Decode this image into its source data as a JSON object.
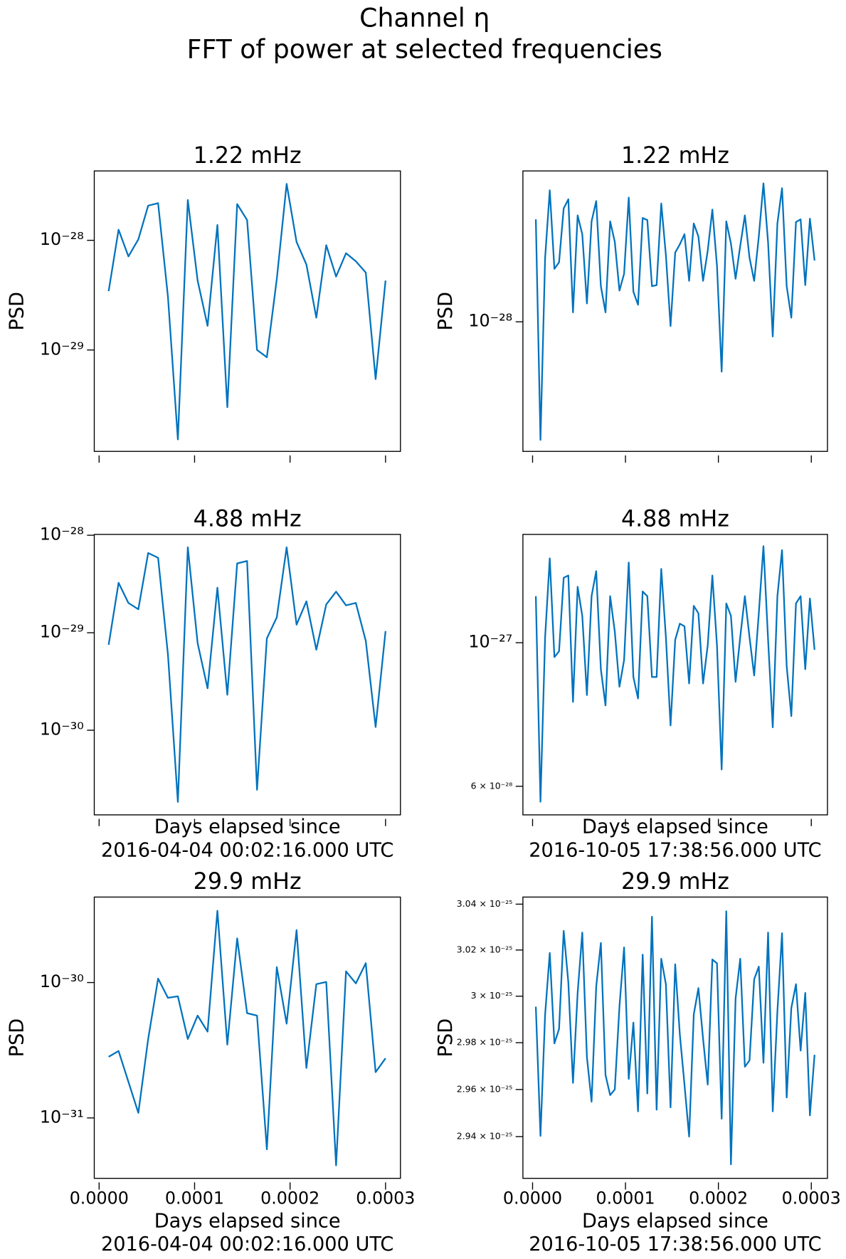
{
  "title": "Channel η",
  "subtitle": "FFT of power at selected frequencies",
  "chart_data": [
    {
      "type": "line",
      "title": "1.22 mHz",
      "ylabel": "PSD",
      "log_y": true,
      "xtick_labels": false,
      "x": [
        1e-05,
        2.04e-05,
        3.07e-05,
        4.11e-05,
        5.14e-05,
        6.18e-05,
        7.21e-05,
        8.25e-05,
        9.29e-05,
        0.0001032,
        0.0001136,
        0.0001239,
        0.0001343,
        0.0001446,
        0.000155,
        0.0001654,
        0.0001757,
        0.0001861,
        0.0001964,
        0.0002068,
        0.0002171,
        0.0002275,
        0.0002379,
        0.0002482,
        0.0002586,
        0.0002689,
        0.0002793,
        0.0002896,
        0.0003
      ],
      "series": [
        {
          "color": "#0072bd",
          "values": [
            3.44e-29,
            1.25e-28,
            7.13e-29,
            1.02e-28,
            2.07e-28,
            2.18e-28,
            3.06e-29,
            1.53e-30,
            2.33e-28,
            4.29e-29,
            1.66e-29,
            1.38e-28,
            3.01e-30,
            2.14e-28,
            1.53e-28,
            1e-29,
            8.59e-30,
            4.44e-29,
            3.27e-28,
            9.67e-29,
            6.02e-29,
            1.97e-29,
            9.03e-29,
            4.67e-29,
            7.63e-29,
            6.44e-29,
            5.08e-29,
            5.43e-30,
            4.29e-29
          ]
        }
      ],
      "xlim": [
        -5.06e-06,
        0.0003156
      ],
      "xticks": [
        0,
        0.0001,
        0.0002,
        0.0003
      ],
      "ylim": [
        1.19e-30,
        4.29e-28
      ],
      "yticks": [
        {
          "value": 1e-28,
          "label": "10⁻²⁸"
        },
        {
          "value": 1e-29,
          "label": "10⁻²⁹"
        }
      ]
    },
    {
      "type": "line",
      "title": "1.22 mHz",
      "ylabel": "PSD",
      "log_y": true,
      "xtick_labels": false,
      "x": [
        3.5e-06,
        8.5e-06,
        1.35e-05,
        1.85e-05,
        2.35e-05,
        2.85e-05,
        3.35e-05,
        3.85e-05,
        4.35e-05,
        4.85e-05,
        5.35e-05,
        5.85e-05,
        6.35e-05,
        6.85e-05,
        7.35e-05,
        7.85e-05,
        8.35e-05,
        8.85e-05,
        9.35e-05,
        9.85e-05,
        0.0001035,
        0.0001085,
        0.0001135,
        0.0001185,
        0.0001235,
        0.0001285,
        0.0001335,
        0.0001385,
        0.0001435,
        0.0001485,
        0.0001535,
        0.0001585,
        0.0001635,
        0.0001685,
        0.0001735,
        0.0001785,
        0.0001835,
        0.0001885,
        0.0001935,
        0.0001985,
        0.0002035,
        0.0002085,
        0.0002135,
        0.0002185,
        0.0002235,
        0.0002285,
        0.0002335,
        0.0002385,
        0.0002435,
        0.0002485,
        0.0002535,
        0.0002585,
        0.0002635,
        0.0002685,
        0.0002735,
        0.0002785,
        0.0002835,
        0.0002885,
        0.0002935,
        0.0002985,
        0.0003035
      ],
      "series": [
        {
          "color": "#0072bd",
          "values": [
            2.08e-28,
            4.3e-29,
            1.58e-28,
            2.56e-28,
            1.46e-28,
            1.53e-28,
            2.25e-28,
            2.4e-28,
            1.07e-28,
            2.14e-28,
            1.87e-28,
            1.14e-28,
            2.05e-28,
            2.37e-28,
            1.29e-28,
            1.07e-28,
            2.05e-28,
            1.77e-28,
            1.25e-28,
            1.41e-28,
            2.43e-28,
            1.24e-28,
            1.13e-28,
            2.1e-28,
            2.07e-28,
            1.29e-28,
            1.3e-28,
            2.33e-28,
            1.61e-28,
            9.7e-29,
            1.64e-28,
            1.74e-28,
            1.87e-28,
            1.34e-28,
            2.02e-28,
            1.84e-28,
            1.34e-28,
            1.66e-28,
            2.23e-28,
            1.49e-28,
            7e-29,
            2.05e-28,
            1.75e-28,
            1.36e-28,
            1.72e-28,
            2.14e-28,
            1.58e-28,
            1.34e-28,
            1.84e-28,
            2.69e-28,
            1.76e-28,
            9e-29,
            2.02e-28,
            2.6e-28,
            1.29e-28,
            1.03e-28,
            2.04e-28,
            2.08e-28,
            1.3e-28,
            2.09e-28,
            1.55e-28
          ]
        }
      ],
      "xlim": [
        -1.04e-05,
        0.0003174
      ],
      "xticks": [
        0,
        0.0001,
        0.0002,
        0.0003
      ],
      "ylim": [
        3.96e-29,
        2.94e-28
      ],
      "yticks": [
        {
          "value": 1e-28,
          "label": "10⁻²⁸"
        }
      ]
    },
    {
      "type": "line",
      "title": "4.88 mHz",
      "log_y": true,
      "xtick_labels": false,
      "xlabel": [
        "Days elapsed since",
        "2016-04-04 00:02:16.000 UTC"
      ],
      "x": [
        1e-05,
        2.04e-05,
        3.07e-05,
        4.11e-05,
        5.14e-05,
        6.18e-05,
        7.21e-05,
        8.25e-05,
        9.29e-05,
        0.0001032,
        0.0001136,
        0.0001239,
        0.0001343,
        0.0001446,
        0.000155,
        0.0001654,
        0.0001757,
        0.0001861,
        0.0001964,
        0.0002068,
        0.0002171,
        0.0002275,
        0.0002379,
        0.0002482,
        0.0002586,
        0.0002689,
        0.0002793,
        0.0002896,
        0.0003
      ],
      "series": [
        {
          "color": "#0072bd",
          "values": [
            7.52e-30,
            3.25e-29,
            2.02e-29,
            1.74e-29,
            6.58e-29,
            5.87e-29,
            5.98e-30,
            1.84e-31,
            7.52e-29,
            7.81e-30,
            2.69e-30,
            2.9e-29,
            2.31e-30,
            5.14e-29,
            5.44e-29,
            2.45e-31,
            8.75e-30,
            1.44e-29,
            7.52e-29,
            1.21e-29,
            2.1e-29,
            6.7e-30,
            1.95e-29,
            2.64e-29,
            1.91e-29,
            2.02e-29,
            8.26e-30,
            1.08e-30,
            1.04e-29
          ]
        }
      ],
      "xlim": [
        -5.06e-06,
        0.0003156
      ],
      "xticks": [
        0,
        0.0001,
        0.0002,
        0.0003
      ],
      "ylim": [
        1.355e-31,
        1.02e-28
      ],
      "yticks": [
        {
          "value": 1e-28,
          "label": "10⁻²⁸"
        },
        {
          "value": 1e-29,
          "label": "10⁻²⁹"
        },
        {
          "value": 1e-30,
          "label": "10⁻³⁰"
        }
      ]
    },
    {
      "type": "line",
      "title": "4.88 mHz",
      "log_y": true,
      "xtick_labels": false,
      "xlabel": [
        "Days elapsed since",
        "2016-10-05 17:38:56.000 UTC"
      ],
      "x": [
        3.5e-06,
        8.5e-06,
        1.35e-05,
        1.85e-05,
        2.35e-05,
        2.85e-05,
        3.35e-05,
        3.85e-05,
        4.35e-05,
        4.85e-05,
        5.35e-05,
        5.85e-05,
        6.35e-05,
        6.85e-05,
        7.35e-05,
        7.85e-05,
        8.35e-05,
        8.85e-05,
        9.35e-05,
        9.85e-05,
        0.0001035,
        0.0001085,
        0.0001135,
        0.0001185,
        0.0001235,
        0.0001285,
        0.0001335,
        0.0001385,
        0.0001435,
        0.0001485,
        0.0001535,
        0.0001585,
        0.0001635,
        0.0001685,
        0.0001735,
        0.0001785,
        0.0001835,
        0.0001885,
        0.0001935,
        0.0001985,
        0.0002035,
        0.0002085,
        0.0002135,
        0.0002185,
        0.0002235,
        0.0002285,
        0.0002335,
        0.0002385,
        0.0002435,
        0.0002485,
        0.0002535,
        0.0002585,
        0.0002635,
        0.0002685,
        0.0002735,
        0.0002785,
        0.0002835,
        0.0002885,
        0.0002935,
        0.0002985,
        0.0003035
      ],
      "series": [
        {
          "color": "#0072bd",
          "values": [
            1.18e-27,
            5.68e-28,
            1.02e-27,
            1.35e-27,
            9.5e-28,
            9.7e-28,
            1.26e-27,
            1.27e-27,
            8.1e-28,
            1.22e-27,
            1.1e-27,
            8.3e-28,
            1.18e-27,
            1.29e-27,
            9.1e-28,
            8e-28,
            1.18e-27,
            1.04e-27,
            8.55e-28,
            9.4e-28,
            1.33e-27,
            8.85e-28,
            8.2e-28,
            1.2e-27,
            1.18e-27,
            8.85e-28,
            8.85e-28,
            1.3e-27,
            1.02e-27,
            7.45e-28,
            1.01e-27,
            1.07e-27,
            1.06e-27,
            8.65e-28,
            1.14e-27,
            1.11e-27,
            8.65e-28,
            9.9e-28,
            1.27e-27,
            9.9e-28,
            6.37e-28,
            1.15e-27,
            1.1e-27,
            8.7e-28,
            1.02e-27,
            1.18e-27,
            1.02e-27,
            8.9e-28,
            1.11e-27,
            1.41e-27,
            1.01e-27,
            7.4e-28,
            1.18e-27,
            1.39e-27,
            9.2e-28,
            7.7e-28,
            1.15e-27,
            1.18e-27,
            9.1e-28,
            1.17e-27,
            9.75e-28
          ]
        }
      ],
      "xlim": [
        -1.04e-05,
        0.0003174
      ],
      "xticks": [
        0,
        0.0001,
        0.0002,
        0.0003
      ],
      "ylim": [
        5.42e-28,
        1.47e-27
      ],
      "yticks": [
        {
          "value": 1e-27,
          "label": "10⁻²⁷"
        },
        {
          "value": 6e-28,
          "label": "6 × 10⁻²⁸"
        }
      ]
    },
    {
      "type": "line",
      "title": "29.9 mHz",
      "ylabel": "PSD",
      "log_y": true,
      "xtick_labels": true,
      "xlabel": [
        "Days elapsed since",
        "2016-04-04 00:02:16.000 UTC"
      ],
      "x": [
        1e-05,
        2.04e-05,
        3.07e-05,
        4.11e-05,
        5.14e-05,
        6.18e-05,
        7.21e-05,
        8.25e-05,
        9.29e-05,
        0.0001032,
        0.0001136,
        0.0001239,
        0.0001343,
        0.0001446,
        0.000155,
        0.0001654,
        0.0001757,
        0.0001861,
        0.0001964,
        0.0002068,
        0.0002171,
        0.0002275,
        0.0002379,
        0.0002482,
        0.0002586,
        0.0002689,
        0.0002793,
        0.0002896,
        0.0003
      ],
      "series": [
        {
          "color": "#0072bd",
          "values": [
            2.83e-31,
            3.12e-31,
            1.85e-31,
            1.09e-31,
            3.83e-31,
            1.07e-30,
            7.71e-31,
            7.92e-31,
            3.83e-31,
            5.7e-31,
            4.34e-31,
            3.39e-30,
            3.48e-31,
            2.12e-30,
            5.94e-31,
            5.7e-31,
            5.86e-32,
            1.3e-30,
            4.97e-31,
            2.44e-30,
            2.34e-31,
            9.73e-31,
            1.01e-30,
            4.46e-32,
            1.21e-30,
            9.86e-31,
            1.39e-30,
            2.18e-31,
            2.76e-31
          ]
        }
      ],
      "xlim": [
        -5.06e-06,
        0.0003156
      ],
      "xticks": [
        {
          "value": 0,
          "label": "0.0000"
        },
        {
          "value": 0.0001,
          "label": "0.0001"
        },
        {
          "value": 0.0002,
          "label": "0.0002"
        },
        {
          "value": 0.0003,
          "label": "0.0003"
        }
      ],
      "ylim": [
        3.58e-32,
        4.28e-30
      ],
      "yticks": [
        {
          "value": 1e-30,
          "label": "10⁻³⁰"
        },
        {
          "value": 1e-31,
          "label": "10⁻³¹"
        }
      ]
    },
    {
      "type": "line",
      "title": "29.9 mHz",
      "ylabel": "PSD",
      "log_y": true,
      "xtick_labels": true,
      "xlabel": [
        "Days elapsed since",
        "2016-10-05 17:38:56.000 UTC"
      ],
      "x": [
        3.5e-06,
        8.5e-06,
        1.35e-05,
        1.85e-05,
        2.35e-05,
        2.85e-05,
        3.35e-05,
        3.85e-05,
        4.35e-05,
        4.85e-05,
        5.35e-05,
        5.85e-05,
        6.35e-05,
        6.85e-05,
        7.35e-05,
        7.85e-05,
        8.35e-05,
        8.85e-05,
        9.35e-05,
        9.85e-05,
        0.0001035,
        0.0001085,
        0.0001135,
        0.0001185,
        0.0001235,
        0.0001285,
        0.0001335,
        0.0001385,
        0.0001435,
        0.0001485,
        0.0001535,
        0.0001585,
        0.0001635,
        0.0001685,
        0.0001735,
        0.0001785,
        0.0001835,
        0.0001885,
        0.0001935,
        0.0001985,
        0.0002035,
        0.0002085,
        0.0002135,
        0.0002185,
        0.0002235,
        0.0002285,
        0.0002335,
        0.0002385,
        0.0002435,
        0.0002485,
        0.0002535,
        0.0002585,
        0.0002635,
        0.0002685,
        0.0002735,
        0.0002785,
        0.0002835,
        0.0002885,
        0.0002935,
        0.0002985,
        0.0003035
      ],
      "series": [
        {
          "color": "#0072bd",
          "values": [
            2.9955e-25,
            2.9403e-25,
            2.9921e-25,
            3.0187e-25,
            2.9797e-25,
            2.9859e-25,
            3.0283e-25,
            3.0059e-25,
            2.9628e-25,
            3.0014e-25,
            3.0276e-25,
            2.9738e-25,
            2.9548e-25,
            3.0042e-25,
            3.0231e-25,
            2.9662e-25,
            2.9576e-25,
            2.96e-25,
            2.9955e-25,
            3.0211e-25,
            2.9645e-25,
            2.9886e-25,
            2.9507e-25,
            3.018e-25,
            2.9583e-25,
            3.0345e-25,
            2.9514e-25,
            3.0162e-25,
            3.0052e-25,
            2.9524e-25,
            3.0138e-25,
            2.9835e-25,
            2.9621e-25,
            2.94e-25,
            2.9921e-25,
            3.0035e-25,
            2.9817e-25,
            2.9621e-25,
            3.0159e-25,
            3.0142e-25,
            2.9476e-25,
            3.0369e-25,
            2.9283e-25,
            2.999e-25,
            3.0162e-25,
            2.9697e-25,
            2.9724e-25,
            3.0073e-25,
            3.0128e-25,
            2.9714e-25,
            3.0276e-25,
            2.9507e-25,
            2.9935e-25,
            3.0273e-25,
            2.9566e-25,
            2.9949e-25,
            3.0052e-25,
            2.9766e-25,
            3.0014e-25,
            2.949e-25,
            2.9748e-25
          ]
        }
      ],
      "xlim": [
        -1.04e-05,
        0.0003174
      ],
      "xticks": [
        {
          "value": 0,
          "label": "0.0000"
        },
        {
          "value": 0.0001,
          "label": "0.0001"
        },
        {
          "value": 0.0002,
          "label": "0.0002"
        },
        {
          "value": 0.0003,
          "label": "0.0003"
        }
      ],
      "ylim": [
        2.9224e-25,
        3.0431e-25
      ],
      "yticks": [
        {
          "value": 3.04e-25,
          "label": "3.04 × 10⁻²⁵"
        },
        {
          "value": 3.02e-25,
          "label": "3.02 × 10⁻²⁵"
        },
        {
          "value": 3e-25,
          "label": "3 × 10⁻²⁵"
        },
        {
          "value": 2.98e-25,
          "label": "2.98 × 10⁻²⁵"
        },
        {
          "value": 2.96e-25,
          "label": "2.96 × 10⁻²⁵"
        },
        {
          "value": 2.94e-25,
          "label": "2.94 × 10⁻²⁵"
        }
      ]
    }
  ]
}
